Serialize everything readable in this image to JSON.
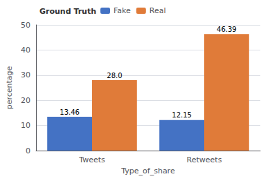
{
  "chart_data": {
    "type": "bar",
    "categories": [
      "Tweets",
      "Retweets"
    ],
    "series": [
      {
        "name": "Fake",
        "color": "#4472c4",
        "values": [
          13.46,
          12.15
        ],
        "value_labels": [
          "13.46",
          "12.15"
        ]
      },
      {
        "name": "Real",
        "color": "#e07b39",
        "values": [
          28.0,
          46.39
        ],
        "value_labels": [
          "28.0",
          "46.39"
        ]
      }
    ],
    "legend_title": "Ground Truth",
    "xlabel": "Type_of_share",
    "ylabel": "percentage",
    "ylim": [
      0,
      50
    ],
    "yticks": [
      0,
      10,
      20,
      30,
      40,
      50
    ],
    "grid": true,
    "legend": "upper left",
    "data_labels": true
  }
}
